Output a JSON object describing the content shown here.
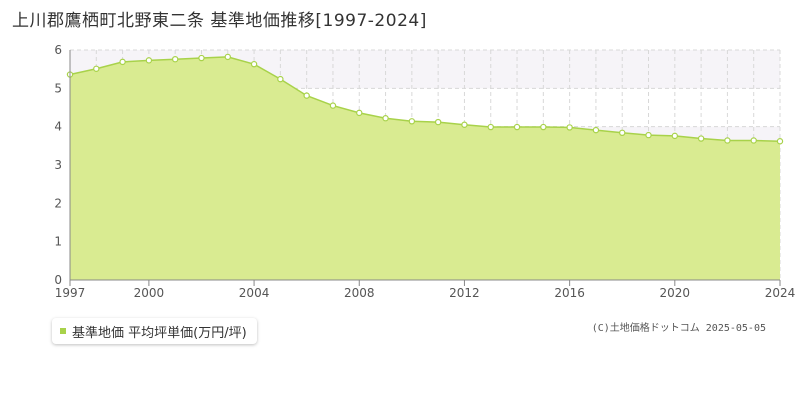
{
  "title": "上川郡鷹栖町北野東二条 基準地価推移[1997-2024]",
  "legend_label": "基準地価 平均坪単価(万円/坪)",
  "credit": "(C)土地価格ドットコム 2025-05-05",
  "colors": {
    "fill": "#d9eb91",
    "line": "#a8d24a",
    "band": "#f6f4f8",
    "grid": "#d8d8d8"
  },
  "chart_data": {
    "type": "area",
    "title": "上川郡鷹栖町北野東二条 基準地価推移[1997-2024]",
    "xlabel": "",
    "ylabel": "",
    "xlim": [
      1997,
      2024
    ],
    "ylim": [
      0,
      6
    ],
    "x_ticks": [
      1997,
      2000,
      2004,
      2008,
      2012,
      2016,
      2020,
      2024
    ],
    "y_ticks": [
      0,
      1,
      2,
      3,
      4,
      5,
      6
    ],
    "grid": true,
    "legend": "bottom-left",
    "series": [
      {
        "name": "基準地価 平均坪単価(万円/坪)",
        "x": [
          1997,
          1998,
          1999,
          2000,
          2001,
          2002,
          2003,
          2004,
          2005,
          2006,
          2007,
          2008,
          2009,
          2010,
          2011,
          2012,
          2013,
          2014,
          2015,
          2016,
          2017,
          2018,
          2019,
          2020,
          2021,
          2022,
          2023,
          2024
        ],
        "values": [
          5.36,
          5.51,
          5.69,
          5.73,
          5.76,
          5.79,
          5.82,
          5.63,
          5.24,
          4.81,
          4.55,
          4.36,
          4.22,
          4.14,
          4.12,
          4.05,
          3.99,
          3.99,
          3.99,
          3.98,
          3.91,
          3.84,
          3.78,
          3.76,
          3.69,
          3.64,
          3.64,
          3.62
        ]
      }
    ]
  }
}
